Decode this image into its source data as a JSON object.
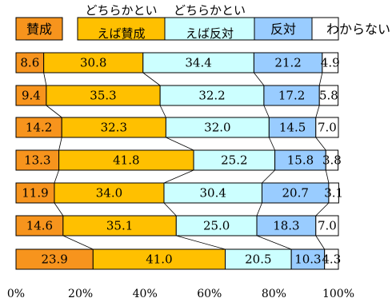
{
  "chart_data": {
    "type": "bar",
    "stacked": true,
    "orientation": "horizontal",
    "percent": true,
    "title": "",
    "xlabel": "",
    "ylabel": "",
    "xlim": [
      0,
      100
    ],
    "x_ticks": [
      "0%",
      "20%",
      "40%",
      "60%",
      "80%",
      "100%"
    ],
    "legend_position": "top",
    "series": [
      {
        "name": "賛成",
        "color": "#f7941d",
        "values": [
          8.6,
          9.4,
          14.2,
          13.3,
          11.9,
          14.6,
          23.9
        ]
      },
      {
        "name": "どちらかといえば賛成",
        "color": "#ffc000",
        "values": [
          30.8,
          35.3,
          32.3,
          41.8,
          34.0,
          35.1,
          41.0
        ]
      },
      {
        "name": "どちらかといえば反対",
        "color": "#ccffff",
        "values": [
          34.4,
          32.2,
          32.0,
          25.2,
          30.4,
          25.0,
          20.5
        ]
      },
      {
        "name": "反対",
        "color": "#99ccff",
        "values": [
          21.2,
          17.2,
          14.5,
          15.8,
          20.7,
          18.3,
          10.3
        ]
      },
      {
        "name": "わからない",
        "color": "#ffffff",
        "values": [
          4.9,
          5.8,
          7.0,
          3.8,
          3.1,
          7.0,
          4.3
        ]
      }
    ],
    "data_labels": [
      [
        "8.6",
        "30.8",
        "34.4",
        "21.2",
        "4.9"
      ],
      [
        "9.4",
        "35.3",
        "32.2",
        "17.2",
        "5.8"
      ],
      [
        "14.2",
        "32.3",
        "32.0",
        "14.5",
        "7.0"
      ],
      [
        "13.3",
        "41.8",
        "25.2",
        "15.8",
        "3.8"
      ],
      [
        "11.9",
        "34.0",
        "30.4",
        "20.7",
        "3.1"
      ],
      [
        "14.6",
        "35.1",
        "25.0",
        "18.3",
        "7.0"
      ],
      [
        "23.9",
        "41.0",
        "20.5",
        "10.3",
        "4.3"
      ]
    ]
  },
  "legend": [
    {
      "lines": [
        "賛成"
      ]
    },
    {
      "lines": [
        "どちらかとい",
        "えば賛成"
      ]
    },
    {
      "lines": [
        "どちらかとい",
        "えば反対"
      ]
    },
    {
      "lines": [
        "反対"
      ]
    },
    {
      "lines": [
        "わからない"
      ]
    }
  ]
}
